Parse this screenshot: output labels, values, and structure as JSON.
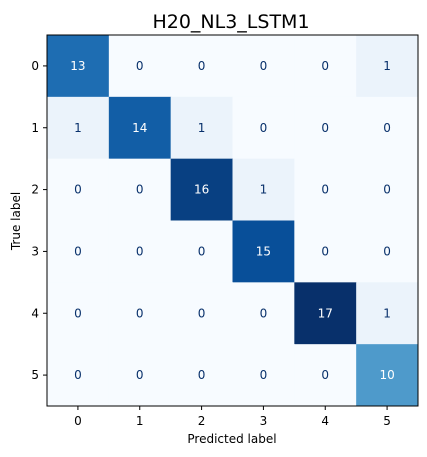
{
  "chart_data": {
    "type": "heatmap",
    "title": "H20_NL3_LSTM1",
    "xlabel": "Predicted label",
    "ylabel": "True label",
    "x_categories": [
      "0",
      "1",
      "2",
      "3",
      "4",
      "5"
    ],
    "y_categories": [
      "0",
      "1",
      "2",
      "3",
      "4",
      "5"
    ],
    "matrix": [
      [
        13,
        0,
        0,
        0,
        0,
        1
      ],
      [
        1,
        14,
        1,
        0,
        0,
        0
      ],
      [
        0,
        0,
        16,
        1,
        0,
        0
      ],
      [
        0,
        0,
        0,
        15,
        0,
        0
      ],
      [
        0,
        0,
        0,
        0,
        17,
        1
      ],
      [
        0,
        0,
        0,
        0,
        0,
        10
      ]
    ],
    "value_range": [
      0,
      17
    ],
    "colormap": "Blues",
    "grid": false,
    "colors": {
      "low": "#f7fbff",
      "high": "#08306b",
      "text_dark": "#08306b",
      "text_light": "#ffffff"
    }
  }
}
